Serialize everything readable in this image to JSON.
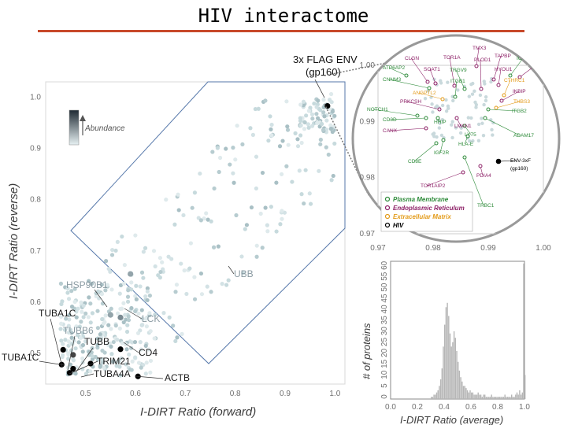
{
  "title": "HIV interactome",
  "chart_data": [
    {
      "type": "scatter",
      "name": "main",
      "xlabel": "I-DIRT Ratio (forward)",
      "ylabel": "I-DIRT Ratio (reverse)",
      "xlim": [
        0.42,
        1.02
      ],
      "ylim": [
        0.44,
        1.03
      ],
      "xticks": [
        "0.5",
        "0.6",
        "0.7",
        "0.8",
        "0.9",
        "1.0"
      ],
      "yticks": [
        "0.5",
        "0.6",
        "0.7",
        "0.8",
        "0.9",
        "1.0"
      ],
      "legend": {
        "label": "Abundance",
        "position": "top-left"
      },
      "bait_label": [
        "3x FLAG ENV",
        "(gp160)"
      ],
      "labeled_points": [
        {
          "label": "3x FLAG ENV (gp160)",
          "x": 0.985,
          "y": 0.983,
          "color": "#000000"
        },
        {
          "label": "UBB",
          "x": 0.59,
          "y": 0.655,
          "color": "#93a4aa"
        },
        {
          "label": "HSP90B1",
          "x": 0.55,
          "y": 0.575,
          "color": "#93a4aa"
        },
        {
          "label": "LCK",
          "x": 0.57,
          "y": 0.57,
          "color": "#7a8a92"
        },
        {
          "label": "TUBA1C",
          "x": 0.455,
          "y": 0.507,
          "color": "#000000"
        },
        {
          "label": "TUBB6",
          "x": 0.475,
          "y": 0.497,
          "color": "#444444"
        },
        {
          "label": "TUBB",
          "x": 0.57,
          "y": 0.508,
          "color": "#000000"
        },
        {
          "label": "CD4",
          "x": 0.51,
          "y": 0.48,
          "color": "#000000"
        },
        {
          "label": "TUBA1C",
          "x": 0.452,
          "y": 0.478,
          "color": "#000000"
        },
        {
          "label": "TRIM21",
          "x": 0.475,
          "y": 0.47,
          "color": "#000000"
        },
        {
          "label": "TUBA4A",
          "x": 0.468,
          "y": 0.462,
          "color": "#000000"
        },
        {
          "label": "ACTB",
          "x": 0.605,
          "y": 0.455,
          "color": "#000000"
        }
      ]
    },
    {
      "type": "scatter",
      "name": "zoom-inset",
      "xlim": [
        0.97,
        1.0
      ],
      "ylim": [
        0.97,
        1.0
      ],
      "xticks": [
        "0.97",
        "0.98",
        "0.99",
        "1.00"
      ],
      "yticks": [
        "0.97",
        "0.98",
        "0.99",
        "1.00"
      ],
      "legend": [
        {
          "label": "Plasma Membrane",
          "color": "#2e8b3a"
        },
        {
          "label": "Endoplasmic Reticulum",
          "color": "#8c1f66"
        },
        {
          "label": "Extracellular Matrix",
          "color": "#e39a18"
        },
        {
          "label": "HIV",
          "color": "#000000"
        }
      ],
      "labels": [
        {
          "text": "TMX3",
          "color": "#8c1f66"
        },
        {
          "text": "CLGN",
          "color": "#8c1f66"
        },
        {
          "text": "TOR1A",
          "color": "#8c1f66"
        },
        {
          "text": "PLOD1",
          "color": "#8c1f66"
        },
        {
          "text": "TAPBP",
          "color": "#8c1f66"
        },
        {
          "text": "ICAM3",
          "color": "#2e8b3a"
        },
        {
          "text": "TOR3A",
          "color": "#8c1f66"
        },
        {
          "text": "ATP6AP2",
          "color": "#2e8b3a"
        },
        {
          "text": "SOAT1",
          "color": "#8c1f66"
        },
        {
          "text": "TRGV9",
          "color": "#2e8b3a"
        },
        {
          "text": "HYOU1",
          "color": "#8c1f66"
        },
        {
          "text": "CNNM3",
          "color": "#2e8b3a"
        },
        {
          "text": "ITGB1",
          "color": "#2e8b3a"
        },
        {
          "text": "CTHRC1",
          "color": "#e39a18"
        },
        {
          "text": "ANGPTL2",
          "color": "#e39a18"
        },
        {
          "text": "IKBIP",
          "color": "#8c1f66"
        },
        {
          "text": "PRKCSH",
          "color": "#8c1f66"
        },
        {
          "text": "THBS3",
          "color": "#e39a18"
        },
        {
          "text": "NOTCH1",
          "color": "#2e8b3a"
        },
        {
          "text": "ITGB2",
          "color": "#2e8b3a"
        },
        {
          "text": "CD3D",
          "color": "#2e8b3a"
        },
        {
          "text": "HHIP",
          "color": "#2e8b3a"
        },
        {
          "text": "LMAN1",
          "color": "#8c1f66"
        },
        {
          "text": "CANX",
          "color": "#8c1f66"
        },
        {
          "text": "LY75",
          "color": "#2e8b3a"
        },
        {
          "text": "ADAM17",
          "color": "#2e8b3a"
        },
        {
          "text": "HLA-E",
          "color": "#2e8b3a"
        },
        {
          "text": "IGF2R",
          "color": "#2e8b3a"
        },
        {
          "text": "CD8E",
          "color": "#2e8b3a"
        },
        {
          "text": "ENV-3xF",
          "color": "#000000"
        },
        {
          "text": "(gp160)",
          "color": "#000000"
        },
        {
          "text": "PDIA4",
          "color": "#8c1f66"
        },
        {
          "text": "TOR1AIP2",
          "color": "#8c1f66"
        },
        {
          "text": "TRBC1",
          "color": "#2e8b3a"
        }
      ]
    },
    {
      "type": "bar",
      "name": "histogram",
      "xlabel": "I-DIRT Ratio (average)",
      "ylabel": "# of proteins",
      "xlim": [
        0.0,
        1.0
      ],
      "ylim": [
        0,
        63
      ],
      "xticks": [
        "0.0",
        "0.2",
        "0.4",
        "0.6",
        "0.8",
        "1.0"
      ],
      "yticks": [
        "0",
        "5",
        "10",
        "15",
        "20",
        "25",
        "30",
        "35",
        "40",
        "45",
        "50",
        "55",
        "60"
      ],
      "bin_start": 0.3,
      "bin_width": 0.01,
      "values": [
        1,
        1,
        2,
        2,
        3,
        4,
        6,
        9,
        14,
        24,
        34,
        42,
        44,
        38,
        30,
        24,
        26,
        31,
        28,
        22,
        17,
        13,
        10,
        8,
        6,
        6,
        5,
        4,
        3,
        4,
        3,
        3,
        2,
        2,
        2,
        3,
        2,
        2,
        1,
        2,
        2,
        1,
        1,
        1,
        1,
        2,
        1,
        1,
        1,
        1,
        1,
        1,
        1,
        1,
        1,
        2,
        1,
        1,
        1,
        1,
        2,
        1,
        1,
        2,
        3,
        2,
        4,
        2,
        3,
        62,
        11
      ]
    }
  ]
}
